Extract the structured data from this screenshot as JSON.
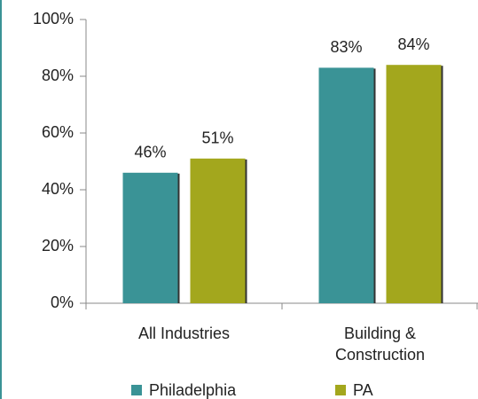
{
  "chart_data": {
    "type": "bar",
    "categories": [
      "All Industries",
      "Building & Construction"
    ],
    "series": [
      {
        "name": "Philadelphia",
        "color": "#3a9396",
        "values": [
          46,
          83
        ],
        "value_labels": [
          "46%",
          "83%"
        ]
      },
      {
        "name": "PA",
        "color": "#a3a71d",
        "values": [
          51,
          84
        ],
        "value_labels": [
          "51%",
          "84%"
        ]
      }
    ],
    "ylim": [
      0,
      100
    ],
    "yticks": [
      {
        "value": 0,
        "label": "0%"
      },
      {
        "value": 20,
        "label": "20%"
      },
      {
        "value": 40,
        "label": "40%"
      },
      {
        "value": 60,
        "label": "60%"
      },
      {
        "value": 80,
        "label": "80%"
      },
      {
        "value": 100,
        "label": "100%"
      }
    ],
    "legend": "bottom"
  }
}
